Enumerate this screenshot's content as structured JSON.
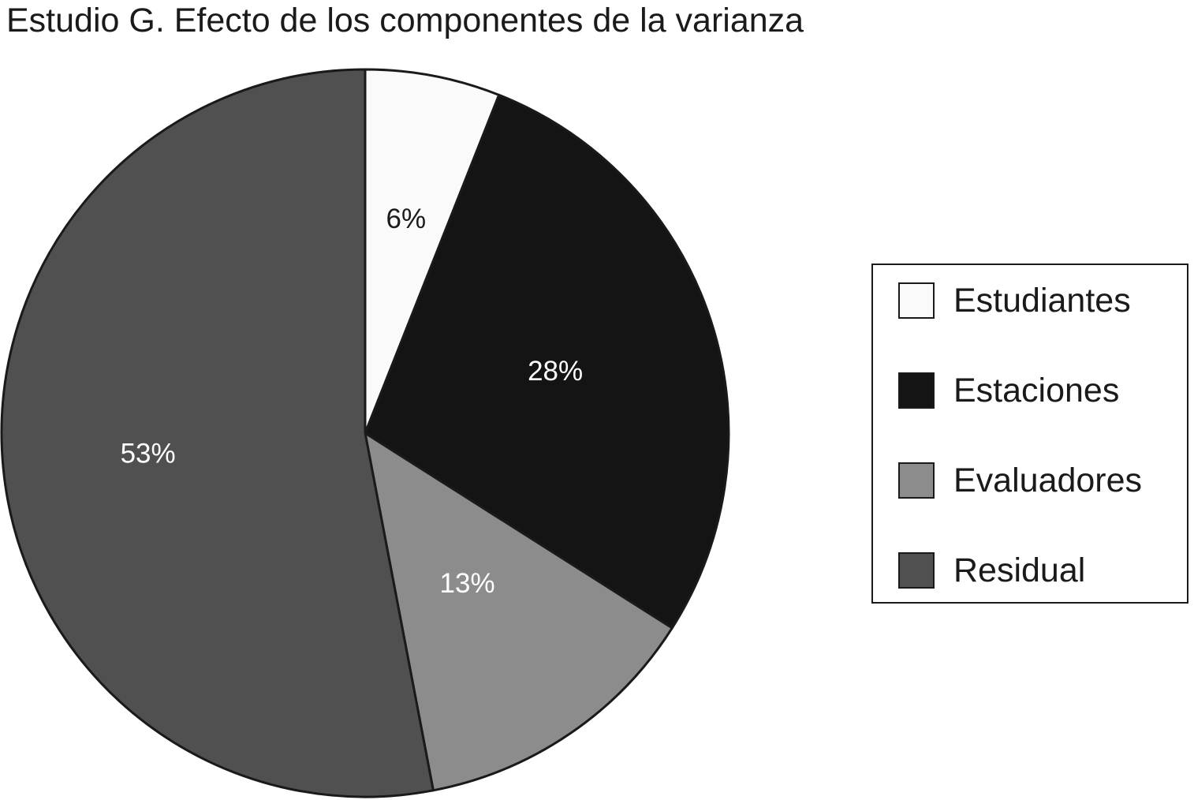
{
  "chart_data": {
    "type": "pie",
    "title": "Estudio G. Efecto de los componentes de la varianza",
    "slices": [
      {
        "name": "Estudiantes",
        "value": 6,
        "label": "6%",
        "color": "#fafafa",
        "label_color": "#1a1a1a"
      },
      {
        "name": "Estaciones",
        "value": 28,
        "label": "28%",
        "color": "#141414",
        "label_color": "#ffffff"
      },
      {
        "name": "Evaluadores",
        "value": 13,
        "label": "13%",
        "color": "#8c8c8c",
        "label_color": "#ffffff"
      },
      {
        "name": "Residual",
        "value": 53,
        "label": "53%",
        "color": "#505050",
        "label_color": "#ffffff"
      }
    ],
    "start": "12 o'clock",
    "direction": "clockwise",
    "legend_position": "right",
    "edge_color": "#1a1a1a"
  }
}
